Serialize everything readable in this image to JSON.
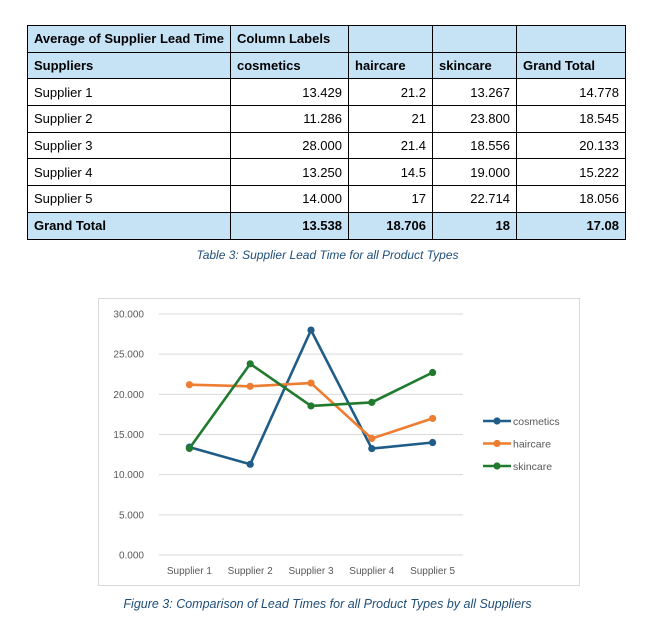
{
  "table": {
    "corner": "Average of Supplier Lead Time",
    "column_labels": "Column Labels",
    "row_header": "Suppliers",
    "columns": [
      "cosmetics",
      "haircare",
      "skincare",
      "Grand Total"
    ],
    "rows": [
      {
        "label": "Supplier 1",
        "values": [
          "13.429",
          "21.2",
          "13.267",
          "14.778"
        ]
      },
      {
        "label": "Supplier 2",
        "values": [
          "11.286",
          "21",
          "23.800",
          "18.545"
        ]
      },
      {
        "label": "Supplier 3",
        "values": [
          "28.000",
          "21.4",
          "18.556",
          "20.133"
        ]
      },
      {
        "label": "Supplier 4",
        "values": [
          "13.250",
          "14.5",
          "19.000",
          "15.222"
        ]
      },
      {
        "label": "Supplier 5",
        "values": [
          "14.000",
          "17",
          "22.714",
          "18.056"
        ]
      }
    ],
    "total": {
      "label": "Grand Total",
      "values": [
        "13.538",
        "18.706",
        "18",
        "17.08"
      ]
    },
    "caption": "Table 3: Supplier Lead Time for all Product Types"
  },
  "chart_data": {
    "type": "line",
    "categories": [
      "Supplier 1",
      "Supplier 2",
      "Supplier 3",
      "Supplier 4",
      "Supplier 5"
    ],
    "series": [
      {
        "name": "cosmetics",
        "values": [
          13.429,
          11.286,
          28.0,
          13.25,
          14.0
        ]
      },
      {
        "name": "haircare",
        "values": [
          21.2,
          21.0,
          21.4,
          14.5,
          17.0
        ]
      },
      {
        "name": "skincare",
        "values": [
          13.267,
          23.8,
          18.556,
          19.0,
          22.714
        ]
      }
    ],
    "yticks": [
      "0.000",
      "5.000",
      "10.000",
      "15.000",
      "20.000",
      "25.000",
      "30.000"
    ],
    "ylim": [
      0,
      30
    ],
    "grid": true,
    "legend": "right",
    "colors": {
      "cosmetics": "#1f5d88",
      "haircare": "#ed7d31",
      "skincare": "#217a2e"
    }
  },
  "figure_caption": "Figure 3: Comparison of Lead Times for all Product Types by all Suppliers"
}
